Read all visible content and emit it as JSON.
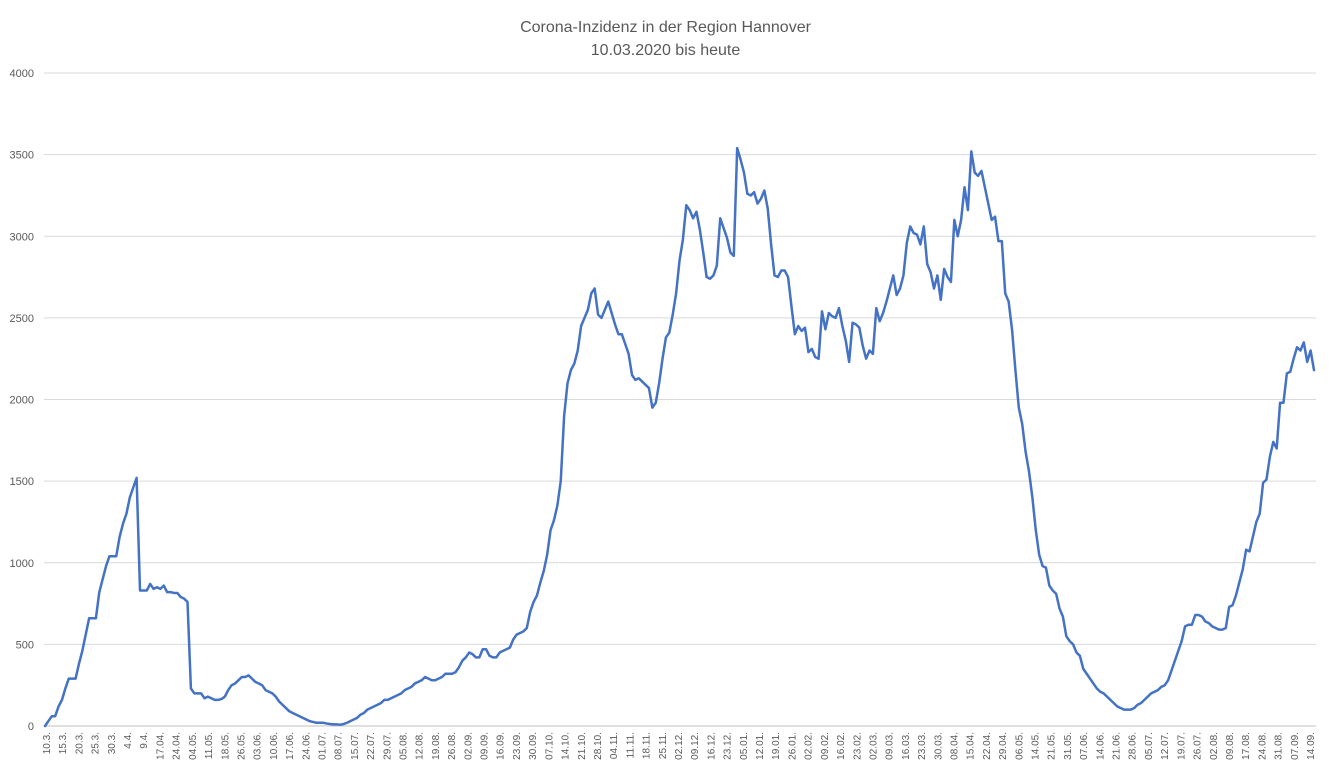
{
  "chart_data": {
    "type": "line",
    "title": "Corona-Inzidenz in der Region Hannover",
    "subtitle": "10.03.2020 bis heute",
    "xlabel": "",
    "ylabel": "",
    "ylim": [
      0,
      4000
    ],
    "yticks": [
      0,
      500,
      1000,
      1500,
      2000,
      2500,
      3000,
      3500,
      4000
    ],
    "grid": true,
    "legend": "none",
    "colors": {
      "line": "#4472C4",
      "grid": "#D9D9D9",
      "text": "#595959"
    },
    "xtick_labels": [
      "10.3.",
      "15.3.",
      "20.3.",
      "25.3.",
      "30.3.",
      "4.4.",
      "9.4.",
      "17.04.",
      "24.04.",
      "04.05.",
      "11.05.",
      "18.05.",
      "26.05.",
      "03.06.",
      "10.06.",
      "17.06.",
      "24.06.",
      "01.07.",
      "08.07.",
      "15.07.",
      "22.07.",
      "29.07.",
      "05.08.",
      "12.08.",
      "19.08.",
      "26.08.",
      "02.09.",
      "09.09.",
      "16.09.",
      "23.09.",
      "30.09.",
      "07.10.",
      "14.10.",
      "21.10.",
      "28.10.",
      "04.11.",
      "11.11.",
      "18.11.",
      "25.11.",
      "02.12.",
      "09.12.",
      "16.12.",
      "23.12.",
      "05.01.",
      "12.01.",
      "19.01.",
      "26.01.",
      "02.02.",
      "09.02.",
      "16.02.",
      "23.02.",
      "02.03.",
      "09.03.",
      "16.03.",
      "23.03.",
      "30.03.",
      "08.04.",
      "15.04.",
      "22.04.",
      "29.04.",
      "06.05.",
      "14.05.",
      "21.05.",
      "31.05.",
      "07.06.",
      "14.06.",
      "21.06.",
      "28.06.",
      "05.07.",
      "12.07.",
      "19.07.",
      "26.07.",
      "02.08.",
      "09.08.",
      "17.08.",
      "24.08.",
      "31.08.",
      "07.09.",
      "14.09."
    ],
    "series": [
      {
        "values": [
          0,
          30,
          60,
          60,
          120,
          160,
          230,
          290,
          290,
          290,
          380,
          460,
          560,
          660,
          660,
          660,
          820,
          900,
          980,
          1040,
          1040,
          1040,
          1160,
          1240,
          1300,
          1400,
          1460,
          1520,
          830,
          830,
          830,
          870,
          840,
          850,
          840,
          860,
          820,
          820,
          815,
          815,
          790,
          780,
          760,
          230,
          200,
          200,
          200,
          170,
          180,
          170,
          160,
          160,
          165,
          180,
          220,
          250,
          260,
          280,
          300,
          300,
          310,
          290,
          270,
          260,
          250,
          220,
          210,
          200,
          180,
          150,
          130,
          110,
          90,
          80,
          70,
          60,
          50,
          40,
          30,
          25,
          20,
          20,
          20,
          15,
          12,
          10,
          10,
          8,
          12,
          20,
          30,
          40,
          50,
          70,
          80,
          100,
          110,
          120,
          130,
          140,
          160,
          160,
          170,
          180,
          190,
          200,
          220,
          230,
          240,
          260,
          270,
          280,
          300,
          290,
          280,
          280,
          290,
          300,
          320,
          320,
          320,
          330,
          360,
          400,
          420,
          450,
          440,
          420,
          420,
          470,
          470,
          430,
          420,
          420,
          450,
          460,
          470,
          480,
          530,
          560,
          570,
          580,
          600,
          700,
          760,
          800,
          880,
          950,
          1050,
          1200,
          1260,
          1350,
          1500,
          1900,
          2100,
          2180,
          2220,
          2300,
          2450,
          2500,
          2550,
          2650,
          2680,
          2520,
          2500,
          2550,
          2600,
          2530,
          2460,
          2400,
          2400,
          2340,
          2280,
          2150,
          2120,
          2130,
          2110,
          2090,
          2070,
          1950,
          1980,
          2100,
          2250,
          2380,
          2410,
          2520,
          2650,
          2850,
          2980,
          3190,
          3160,
          3110,
          3150,
          3040,
          2900,
          2750,
          2740,
          2760,
          2820,
          3110,
          3050,
          2990,
          2900,
          2880,
          3540,
          3470,
          3390,
          3260,
          3250,
          3270,
          3200,
          3230,
          3280,
          3170,
          2950,
          2760,
          2750,
          2790,
          2790,
          2750,
          2570,
          2400,
          2450,
          2420,
          2440,
          2290,
          2310,
          2260,
          2250,
          2540,
          2430,
          2530,
          2510,
          2500,
          2560,
          2450,
          2360,
          2230,
          2470,
          2460,
          2440,
          2330,
          2250,
          2300,
          2280,
          2560,
          2480,
          2530,
          2600,
          2680,
          2760,
          2640,
          2680,
          2760,
          2960,
          3060,
          3020,
          3010,
          2950,
          3060,
          2830,
          2780,
          2680,
          2760,
          2610,
          2800,
          2750,
          2720,
          3100,
          3000,
          3100,
          3300,
          3160,
          3520,
          3390,
          3370,
          3400,
          3300,
          3200,
          3100,
          3120,
          2970,
          2970,
          2650,
          2600,
          2430,
          2180,
          1950,
          1850,
          1680,
          1560,
          1400,
          1200,
          1050,
          980,
          970,
          860,
          830,
          810,
          720,
          670,
          550,
          520,
          500,
          450,
          430,
          350,
          320,
          290,
          260,
          230,
          210,
          200,
          180,
          160,
          140,
          120,
          110,
          100,
          100,
          100,
          110,
          130,
          140,
          160,
          180,
          200,
          210,
          220,
          240,
          250,
          280,
          340,
          400,
          460,
          520,
          610,
          620,
          620,
          680,
          680,
          670,
          640,
          630,
          610,
          600,
          590,
          590,
          600,
          730,
          740,
          800,
          880,
          960,
          1080,
          1070,
          1160,
          1250,
          1300,
          1490,
          1510,
          1650,
          1740,
          1700,
          1980,
          1980,
          2160,
          2170,
          2250,
          2320,
          2300,
          2350,
          2230,
          2300,
          2180
        ]
      }
    ]
  }
}
